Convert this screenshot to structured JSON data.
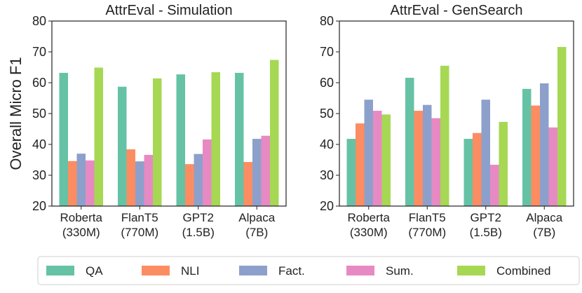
{
  "ylabel": "Overall Micro F1",
  "legend": [
    {
      "label": "QA",
      "color": "#66c2a5"
    },
    {
      "label": "NLI",
      "color": "#fc8d62"
    },
    {
      "label": "Fact.",
      "color": "#8da0cb"
    },
    {
      "label": "Sum.",
      "color": "#e78ac3"
    },
    {
      "label": "Combined",
      "color": "#a6d854"
    }
  ],
  "chart_data": [
    {
      "type": "bar",
      "title": "AttrEval - Simulation",
      "categories": [
        [
          "Roberta",
          "(330M)"
        ],
        [
          "FlanT5",
          "(770M)"
        ],
        [
          "GPT2",
          "(1.5B)"
        ],
        [
          "Alpaca",
          "(7B)"
        ]
      ],
      "ylim": [
        20,
        80
      ],
      "yticks": [
        20,
        30,
        40,
        50,
        60,
        70,
        80
      ],
      "series": [
        {
          "name": "QA",
          "values": [
            63.2,
            58.7,
            62.7,
            63.2
          ]
        },
        {
          "name": "NLI",
          "values": [
            34.6,
            38.4,
            33.6,
            34.3
          ]
        },
        {
          "name": "Fact.",
          "values": [
            37.0,
            34.5,
            36.9,
            41.8
          ]
        },
        {
          "name": "Sum.",
          "values": [
            34.8,
            36.6,
            41.6,
            42.8
          ]
        },
        {
          "name": "Combined",
          "values": [
            64.9,
            61.4,
            63.4,
            67.4
          ]
        }
      ]
    },
    {
      "type": "bar",
      "title": "AttrEval - GenSearch",
      "categories": [
        [
          "Roberta",
          "(330M)"
        ],
        [
          "FlanT5",
          "(770M)"
        ],
        [
          "GPT2",
          "(1.5B)"
        ],
        [
          "Alpaca",
          "(7B)"
        ]
      ],
      "ylim": [
        20,
        80
      ],
      "yticks": [
        20,
        30,
        40,
        50,
        60,
        70,
        80
      ],
      "series": [
        {
          "name": "QA",
          "values": [
            41.8,
            61.6,
            41.8,
            58.0
          ]
        },
        {
          "name": "NLI",
          "values": [
            46.8,
            50.9,
            43.7,
            52.6
          ]
        },
        {
          "name": "Fact.",
          "values": [
            54.5,
            52.8,
            54.5,
            59.8
          ]
        },
        {
          "name": "Sum.",
          "values": [
            50.9,
            48.5,
            33.4,
            45.5
          ]
        },
        {
          "name": "Combined",
          "values": [
            49.7,
            65.5,
            47.3,
            71.6
          ]
        }
      ]
    }
  ]
}
